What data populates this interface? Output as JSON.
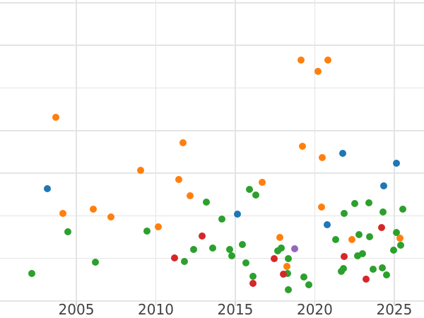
{
  "chart_data": {
    "type": "scatter",
    "title": "",
    "xlabel": "",
    "ylabel": "",
    "legend": "none",
    "grid": "on",
    "background_color": "#ffffff",
    "grid_color": "#e4e4e4",
    "tick_label_color": "#414141",
    "marker_size_px": 10,
    "x_axis": {
      "range": [
        2000.2,
        2026.87
      ],
      "ticks": [
        2005,
        2010,
        2015,
        2020,
        2025
      ],
      "tick_labels": [
        "2005",
        "2010",
        "2015",
        "2020",
        "2025"
      ]
    },
    "y_axis": {
      "range": [
        0,
        7.065
      ],
      "gridline_values": [
        0,
        1,
        2,
        3,
        4,
        5,
        6,
        7
      ],
      "tick_labels_visible": false,
      "note": "y-axis labels not visible in image; values in gridline units from bottom gridline"
    },
    "series": [
      {
        "name": "orange",
        "color": "#ff7f0e",
        "points": [
          [
            2003.71,
            4.31
          ],
          [
            2011.71,
            3.71
          ],
          [
            2009.04,
            3.07
          ],
          [
            2010.16,
            1.74
          ],
          [
            2006.07,
            2.16
          ],
          [
            2007.18,
            1.97
          ],
          [
            2004.16,
            2.06
          ],
          [
            2012.16,
            2.47
          ],
          [
            2011.44,
            2.85
          ],
          [
            2016.69,
            2.79
          ],
          [
            2019.13,
            5.66
          ],
          [
            2020.82,
            5.66
          ],
          [
            2020.2,
            5.39
          ],
          [
            2019.22,
            3.63
          ],
          [
            2020.47,
            3.37
          ],
          [
            2020.42,
            2.21
          ],
          [
            2017.8,
            1.49
          ],
          [
            2018.24,
            0.81
          ],
          [
            2022.33,
            1.44
          ],
          [
            2025.36,
            1.48
          ]
        ]
      },
      {
        "name": "blue",
        "color": "#1f77b4",
        "points": [
          [
            2003.18,
            2.64
          ],
          [
            2015.13,
            2.04
          ],
          [
            2020.78,
            1.79
          ],
          [
            2021.76,
            3.47
          ],
          [
            2024.33,
            2.7
          ],
          [
            2025.13,
            3.23
          ]
        ]
      },
      {
        "name": "green",
        "color": "#2ca02c",
        "points": [
          [
            2002.2,
            0.65
          ],
          [
            2004.47,
            1.63
          ],
          [
            2006.2,
            0.91
          ],
          [
            2009.44,
            1.64
          ],
          [
            2013.18,
            2.32
          ],
          [
            2012.38,
            1.21
          ],
          [
            2011.8,
            0.93
          ],
          [
            2013.58,
            1.24
          ],
          [
            2014.16,
            1.92
          ],
          [
            2015.89,
            2.62
          ],
          [
            2016.29,
            2.49
          ],
          [
            2014.64,
            1.21
          ],
          [
            2014.78,
            1.06
          ],
          [
            2015.44,
            1.33
          ],
          [
            2015.67,
            0.9
          ],
          [
            2016.11,
            0.58
          ],
          [
            2017.67,
            1.18
          ],
          [
            2017.89,
            1.24
          ],
          [
            2018.33,
            1.0
          ],
          [
            2018.29,
            0.65
          ],
          [
            2019.31,
            0.56
          ],
          [
            2019.62,
            0.38
          ],
          [
            2018.33,
            0.27
          ],
          [
            2021.31,
            1.44
          ],
          [
            2021.84,
            2.06
          ],
          [
            2022.51,
            2.29
          ],
          [
            2023.4,
            2.31
          ],
          [
            2023.44,
            1.51
          ],
          [
            2022.78,
            1.56
          ],
          [
            2021.8,
            0.76
          ],
          [
            2021.67,
            0.7
          ],
          [
            2022.69,
            1.06
          ],
          [
            2023.0,
            1.11
          ],
          [
            2023.67,
            0.75
          ],
          [
            2024.24,
            0.78
          ],
          [
            2024.51,
            0.61
          ],
          [
            2024.29,
            2.09
          ],
          [
            2024.96,
            1.19
          ],
          [
            2025.13,
            1.61
          ],
          [
            2025.4,
            1.31
          ],
          [
            2025.53,
            2.16
          ]
        ]
      },
      {
        "name": "red",
        "color": "#d62728",
        "points": [
          [
            2012.91,
            1.53
          ],
          [
            2011.18,
            1.01
          ],
          [
            2016.11,
            0.41
          ],
          [
            2017.44,
            1.0
          ],
          [
            2018.02,
            0.63
          ],
          [
            2021.84,
            1.04
          ],
          [
            2023.22,
            0.51
          ],
          [
            2024.2,
            1.72
          ]
        ]
      },
      {
        "name": "purple",
        "color": "#9467bd",
        "points": [
          [
            2018.73,
            1.23
          ]
        ]
      }
    ]
  }
}
